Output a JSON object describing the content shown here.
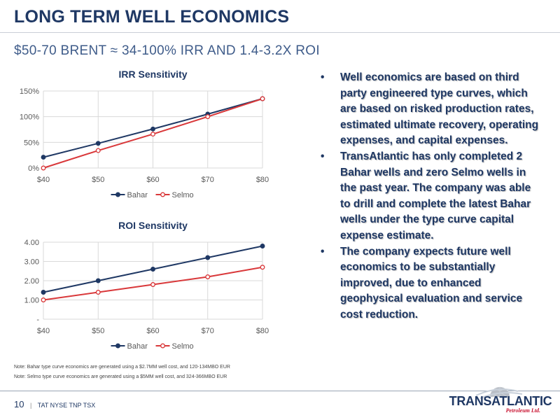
{
  "header": {
    "title": "LONG TERM WELL ECONOMICS",
    "subtitle": "$50-70 BRENT ≈ 34-100% IRR AND 1.4-3.2X ROI"
  },
  "chart_data": [
    {
      "type": "line",
      "title": "IRR Sensitivity",
      "categories": [
        "$40",
        "$50",
        "$60",
        "$70",
        "$80"
      ],
      "series": [
        {
          "name": "Bahar",
          "color": "#1f3864",
          "values": [
            0.21,
            0.48,
            0.76,
            1.05,
            1.35
          ]
        },
        {
          "name": "Selmo",
          "color": "#d9383a",
          "values": [
            0.0,
            0.34,
            0.66,
            1.0,
            1.35
          ]
        }
      ],
      "yticks": [
        {
          "v": 0,
          "label": "0%"
        },
        {
          "v": 0.5,
          "label": "50%"
        },
        {
          "v": 1.0,
          "label": "100%"
        },
        {
          "v": 1.5,
          "label": "150%"
        }
      ],
      "ylim": [
        0,
        1.5
      ],
      "legend": "bottom"
    },
    {
      "type": "line",
      "title": "ROI Sensitivity",
      "categories": [
        "$40",
        "$50",
        "$60",
        "$70",
        "$80"
      ],
      "series": [
        {
          "name": "Bahar",
          "color": "#1f3864",
          "values": [
            1.4,
            2.0,
            2.6,
            3.2,
            3.8
          ]
        },
        {
          "name": "Selmo",
          "color": "#d9383a",
          "values": [
            1.0,
            1.4,
            1.8,
            2.2,
            2.7
          ]
        }
      ],
      "yticks": [
        {
          "v": 0,
          "label": "-"
        },
        {
          "v": 1,
          "label": "1.00"
        },
        {
          "v": 2,
          "label": "2.00"
        },
        {
          "v": 3,
          "label": "3.00"
        },
        {
          "v": 4,
          "label": "4.00"
        }
      ],
      "ylim": [
        0,
        4
      ],
      "legend": "bottom"
    }
  ],
  "bullets": [
    {
      "marker": "•",
      "text": "Well economics are based on third party engineered type curves, which are based on risked production rates, estimated ultimate recovery, operating expenses, and capital expenses."
    },
    {
      "marker": "•",
      "text": "TransAtlantic has only completed 2 Bahar wells and zero Selmo wells in the past year.  The company was able to drill and complete the latest Bahar wells under the type curve capital expense estimate."
    },
    {
      "marker": "•",
      "text": "The company expects future well economics to be substantially improved, due to enhanced geophysical evaluation and service cost reduction."
    }
  ],
  "notes": [
    "Note:  Bahar type curve economics are generated using a $2.7MM well cost, and 120-134MBO EUR",
    "Note:  Selmo type curve economics are generated using a $5MM well cost, and 324-366MBO EUR"
  ],
  "footer": {
    "page_number": "10",
    "separator": "|",
    "tickers": "TAT NYSE   TNP TSX"
  },
  "logo": {
    "name": "TRANSATLANTIC",
    "tagline": "Petroleum Ltd.",
    "colors": {
      "navy": "#1f3864",
      "red": "#c8102e"
    }
  }
}
